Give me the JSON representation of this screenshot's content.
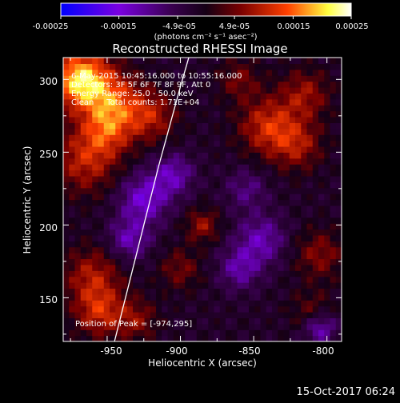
{
  "colorbar": {
    "ticks": [
      "-0.00025",
      "-0.00015",
      "-4.9e-05",
      "4.9e-05",
      "0.00015",
      "0.00025"
    ],
    "unit_label": "(photons cm⁻² s⁻¹ asec⁻²)"
  },
  "plot": {
    "title": "Reconstructed RHESSI Image",
    "info_lines": [
      "6-May-2015 10:45:16.000 to 10:55:16.000",
      "Detectors: 3F 5F 6F 7F 8F 9F, Att 0",
      "Energy Range: 25.0 - 50.0 keV",
      "Clean     Total counts: 1.71E+04"
    ],
    "peak_label": "Position of Peak = [-974,295]",
    "xlabel": "Heliocentric X (arcsec)",
    "ylabel": "Heliocentric Y (arcsec)"
  },
  "timestamp": "15-Oct-2017 06:24",
  "colors": {
    "background": "#000000",
    "foreground": "#ffffff",
    "colormap": [
      "#0000ff",
      "#7a00e0",
      "#3a0050",
      "#150015",
      "#7a0000",
      "#ff4000",
      "#ffff40",
      "#ffffff"
    ]
  },
  "chart_data": {
    "type": "heatmap",
    "title": "Reconstructed RHESSI Image",
    "xlabel": "Heliocentric X (arcsec)",
    "ylabel": "Heliocentric Y (arcsec)",
    "xlim": [
      -980,
      -790
    ],
    "ylim": [
      120,
      315
    ],
    "x_ticks": [
      -950,
      -900,
      -850,
      -800
    ],
    "y_ticks": [
      150,
      200,
      250,
      300
    ],
    "x_tick_labels": [
      "-950",
      "-900",
      "-850",
      "-800"
    ],
    "y_tick_labels": [
      "150",
      "200",
      "250",
      "300"
    ],
    "colorbar_range": [
      -0.00025,
      0.00025
    ],
    "colorbar_ticks": [
      -0.00025,
      -0.00015,
      -4.9e-05,
      4.9e-05,
      0.00015,
      0.00025
    ],
    "peak_position": [
      -974,
      295
    ],
    "limb_curve": [
      [
        -980,
        90
      ],
      [
        -945,
        120
      ],
      [
        -930,
        180
      ],
      [
        -915,
        240
      ],
      [
        -900,
        295
      ],
      [
        -890,
        330
      ]
    ],
    "blobs": [
      {
        "x": -968,
        "y": 300,
        "amp": 1.0,
        "s": 14
      },
      {
        "x": -945,
        "y": 285,
        "amp": 0.55,
        "s": 14
      },
      {
        "x": -920,
        "y": 275,
        "amp": 0.45,
        "s": 12
      },
      {
        "x": -965,
        "y": 245,
        "amp": 0.5,
        "s": 16
      },
      {
        "x": -950,
        "y": 265,
        "amp": 0.45,
        "s": 12
      },
      {
        "x": -960,
        "y": 165,
        "amp": 0.45,
        "s": 14
      },
      {
        "x": -955,
        "y": 140,
        "amp": 0.5,
        "s": 12
      },
      {
        "x": -930,
        "y": 135,
        "amp": 0.35,
        "s": 10
      },
      {
        "x": -840,
        "y": 268,
        "amp": 0.55,
        "s": 14
      },
      {
        "x": -815,
        "y": 290,
        "amp": 0.4,
        "s": 12
      },
      {
        "x": -820,
        "y": 255,
        "amp": 0.4,
        "s": 12
      },
      {
        "x": -885,
        "y": 200,
        "amp": 0.4,
        "s": 8
      },
      {
        "x": -900,
        "y": 170,
        "amp": 0.3,
        "s": 10
      },
      {
        "x": -860,
        "y": 300,
        "amp": 0.3,
        "s": 10
      },
      {
        "x": -805,
        "y": 180,
        "amp": 0.35,
        "s": 12
      },
      {
        "x": -810,
        "y": 140,
        "amp": 0.3,
        "s": 10
      },
      {
        "x": -925,
        "y": 218,
        "amp": -0.55,
        "s": 12
      },
      {
        "x": -905,
        "y": 235,
        "amp": -0.45,
        "s": 10
      },
      {
        "x": -935,
        "y": 190,
        "amp": -0.45,
        "s": 10
      },
      {
        "x": -845,
        "y": 190,
        "amp": -0.45,
        "s": 12
      },
      {
        "x": -860,
        "y": 170,
        "amp": -0.4,
        "s": 10
      },
      {
        "x": -855,
        "y": 225,
        "amp": -0.3,
        "s": 10
      },
      {
        "x": -805,
        "y": 130,
        "amp": -0.55,
        "s": 8
      }
    ]
  }
}
